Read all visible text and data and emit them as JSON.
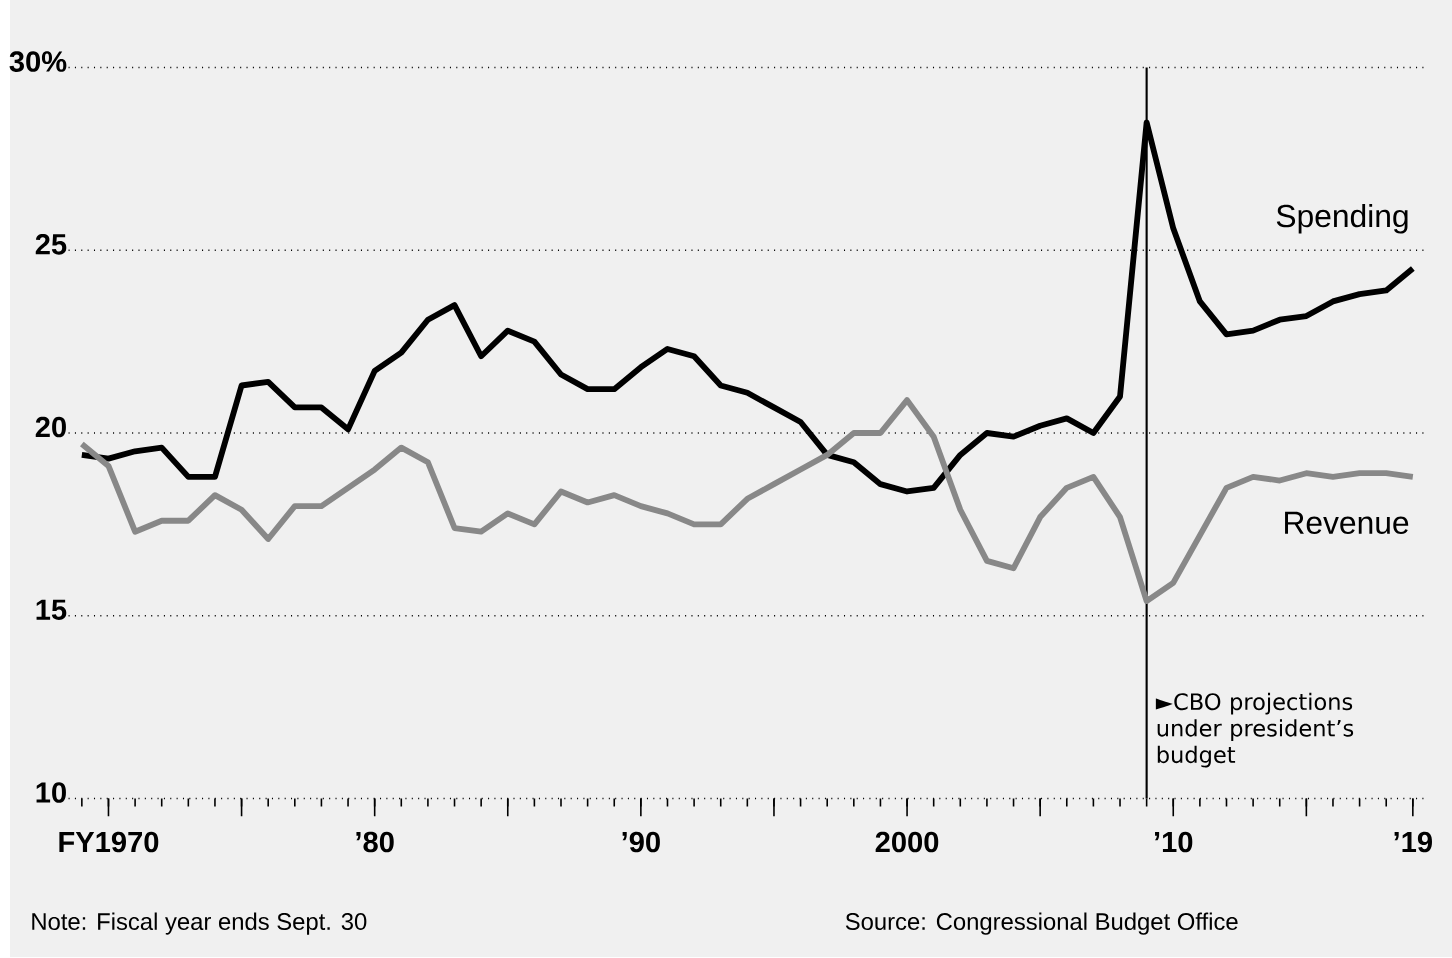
{
  "chart_data": {
    "type": "line",
    "x": [
      1969,
      1970,
      1971,
      1972,
      1973,
      1974,
      1975,
      1976,
      1977,
      1978,
      1979,
      1980,
      1981,
      1982,
      1983,
      1984,
      1985,
      1986,
      1987,
      1988,
      1989,
      1990,
      1991,
      1992,
      1993,
      1994,
      1995,
      1996,
      1997,
      1998,
      1999,
      2000,
      2001,
      2002,
      2003,
      2004,
      2005,
      2006,
      2007,
      2008,
      2009,
      2010,
      2011,
      2012,
      2013,
      2014,
      2015,
      2016,
      2017,
      2018,
      2019
    ],
    "series": [
      {
        "name": "Spending",
        "color": "#000000",
        "values": [
          19.4,
          19.3,
          19.5,
          19.6,
          18.8,
          18.8,
          21.3,
          21.4,
          20.7,
          20.7,
          20.1,
          21.7,
          22.2,
          23.1,
          23.5,
          22.1,
          22.8,
          22.5,
          21.6,
          21.2,
          21.2,
          21.8,
          22.3,
          22.1,
          21.3,
          21.1,
          20.7,
          20.3,
          19.4,
          19.2,
          18.6,
          18.4,
          18.5,
          19.4,
          20.0,
          19.9,
          20.2,
          20.4,
          20.0,
          21.0,
          28.5,
          25.6,
          23.6,
          22.7,
          22.8,
          23.1,
          23.2,
          23.6,
          23.8,
          23.9,
          24.5
        ]
      },
      {
        "name": "Revenue",
        "color": "#888888",
        "values": [
          19.7,
          19.1,
          17.3,
          17.6,
          17.6,
          18.3,
          17.9,
          17.1,
          18.0,
          18.0,
          18.5,
          19.0,
          19.6,
          19.2,
          17.4,
          17.3,
          17.8,
          17.5,
          18.4,
          18.1,
          18.3,
          18.0,
          17.8,
          17.5,
          17.5,
          18.2,
          18.6,
          19.0,
          19.4,
          20.0,
          20.0,
          20.9,
          19.9,
          17.9,
          16.5,
          16.3,
          17.7,
          18.5,
          18.8,
          17.7,
          15.4,
          15.9,
          17.2,
          18.5,
          18.8,
          18.7,
          18.9,
          18.8,
          18.9,
          18.9,
          18.8
        ]
      }
    ],
    "xlim": [
      1968.5,
      2019.5
    ],
    "xticks": [
      {
        "value": 1970,
        "label": "FY1970"
      },
      {
        "value": 1975,
        "label": null
      },
      {
        "value": 1980,
        "label": "’80"
      },
      {
        "value": 1985,
        "label": null
      },
      {
        "value": 1990,
        "label": "’90"
      },
      {
        "value": 1995,
        "label": null
      },
      2000,
      {
        "value": 2005,
        "label": null
      },
      {
        "value": 2010,
        "label": "’10"
      },
      {
        "value": 2015,
        "label": null
      },
      {
        "value": 2019,
        "label": "’19"
      }
    ],
    "ylim": [
      10,
      30
    ],
    "yticks": [
      10,
      15,
      20,
      25,
      {
        "value": 30,
        "label": "30%"
      }
    ],
    "grid": "y",
    "ref_lines": [
      {
        "axis": "x",
        "value": 2009,
        "label": "►CBO projections under president’s budget",
        "color": "#000000"
      }
    ],
    "annotations": [
      "Note: Fiscal year ends Sept. 30",
      "Source: Congressional Budget Office"
    ]
  }
}
